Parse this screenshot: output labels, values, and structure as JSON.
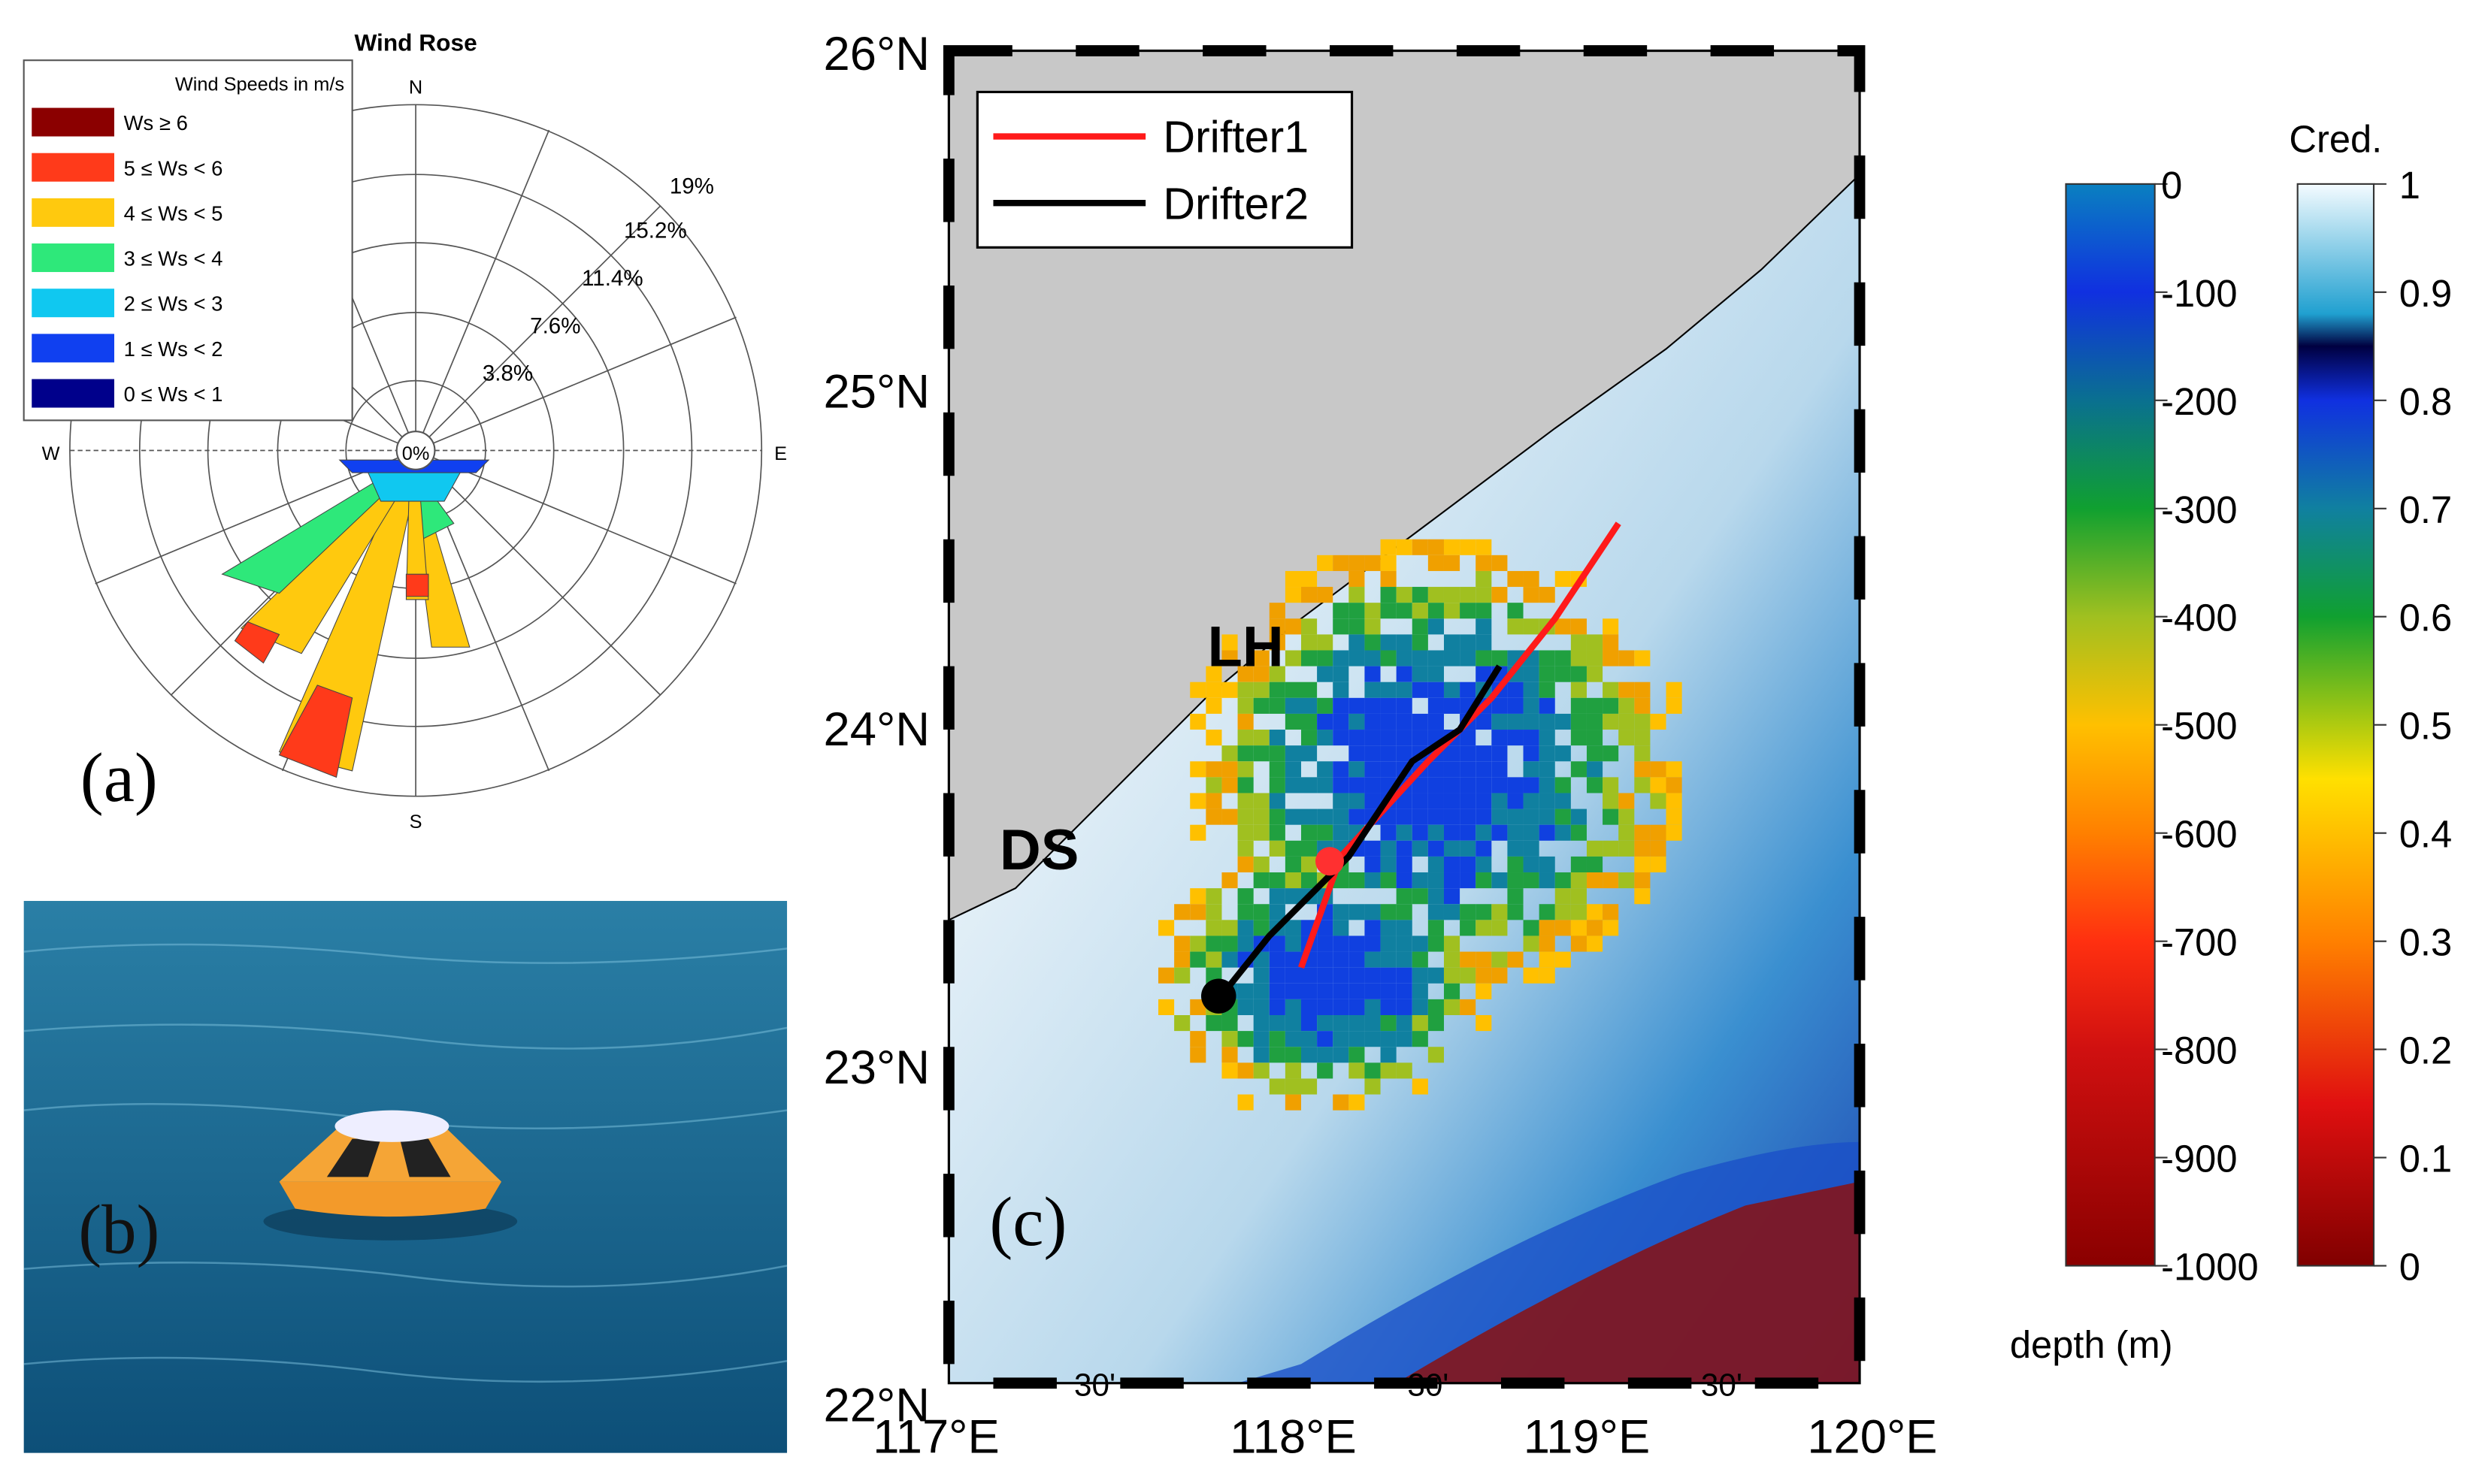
{
  "wind_rose": {
    "title": "Wind Rose",
    "legend_title": "Wind Speeds in m/s",
    "legend": [
      "Ws ≥ 6",
      "5 ≤ Ws < 6",
      "4 ≤ Ws < 5",
      "3 ≤ Ws < 4",
      "2 ≤ Ws < 3",
      "1 ≤ Ws < 2",
      "0 ≤ Ws < 1"
    ],
    "legend_colors": [
      "#8b0000",
      "#ff3a1a",
      "#ffc90e",
      "#2ee87a",
      "#10c8f0",
      "#1040f0",
      "#00008b"
    ],
    "rings": [
      "3.8%",
      "7.6%",
      "11.4%",
      "15.2%",
      "19%"
    ],
    "center": "0%",
    "compass": {
      "n": "N",
      "e": "E",
      "s": "S",
      "w": "W"
    },
    "panel": "(a)"
  },
  "photo": {
    "panel": "(b)"
  },
  "map": {
    "panel": "(c)",
    "lat_labels": [
      "26°N",
      "25°N",
      "24°N",
      "23°N",
      "22°N"
    ],
    "lon_labels": [
      "117°E",
      "30'",
      "118°E",
      "30'",
      "119°E",
      "30'",
      "120°E"
    ],
    "legend": [
      {
        "name": "Drifter1",
        "color": "#ff1a1a"
      },
      {
        "name": "Drifter2",
        "color": "#000000"
      }
    ],
    "sites": [
      "LH",
      "DS"
    ]
  },
  "depth_bar": {
    "label": "depth (m)",
    "ticks": [
      0,
      -100,
      -200,
      -300,
      -400,
      -500,
      -600,
      -700,
      -800,
      -900,
      -1000
    ]
  },
  "cred_bar": {
    "label": "Cred.",
    "ticks": [
      1,
      0.9,
      0.8,
      0.7,
      0.6,
      0.5,
      0.4,
      0.3,
      0.2,
      0.1,
      0
    ]
  }
}
